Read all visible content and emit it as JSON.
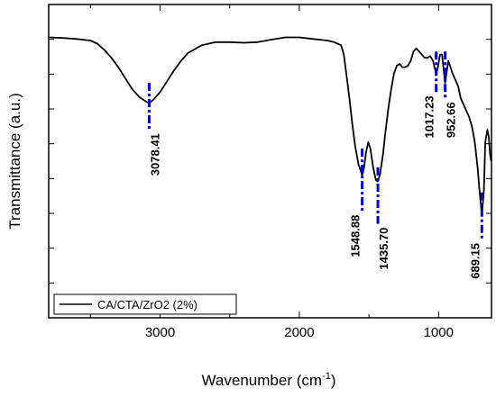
{
  "chart_data": {
    "type": "line",
    "xlabel": "Wavenumber (cm",
    "xlabel_sup": "-1",
    "xlabel_close": ")",
    "ylabel": "Transmittance (a.u.)",
    "xlim": [
      3800,
      620
    ],
    "ylim": [
      0,
      100
    ],
    "x_reversed": true,
    "x_ticks": [
      3000,
      2000,
      1000
    ],
    "y_ticks_labeled": false,
    "legend": {
      "position": "bottom-left",
      "entries": [
        "CA/CTA/ZrO2 (2%)"
      ]
    },
    "colors": {
      "series": "#000000",
      "markers": "#0000cc",
      "axis": "#000000"
    },
    "series": [
      {
        "name": "CA/CTA/ZrO2 (2%)",
        "x": [
          3800,
          3700,
          3600,
          3500,
          3450,
          3400,
          3350,
          3300,
          3250,
          3200,
          3150,
          3100,
          3078,
          3050,
          3000,
          2950,
          2900,
          2850,
          2800,
          2700,
          2600,
          2500,
          2400,
          2300,
          2200,
          2100,
          2000,
          1900,
          1800,
          1750,
          1700,
          1680,
          1660,
          1640,
          1620,
          1600,
          1575,
          1560,
          1549,
          1535,
          1520,
          1505,
          1490,
          1470,
          1450,
          1436,
          1420,
          1400,
          1380,
          1360,
          1340,
          1320,
          1300,
          1280,
          1260,
          1240,
          1220,
          1200,
          1180,
          1160,
          1140,
          1120,
          1100,
          1080,
          1060,
          1040,
          1030,
          1017,
          1005,
          990,
          975,
          963,
          953,
          943,
          930,
          915,
          900,
          880,
          860,
          840,
          820,
          800,
          780,
          760,
          740,
          720,
          705,
          689,
          675,
          665,
          650,
          640,
          630,
          622
        ],
        "y": [
          89.5,
          89.3,
          89,
          88.5,
          87.5,
          85.5,
          83,
          80,
          76.5,
          73,
          70.5,
          69,
          68.5,
          69.5,
          72,
          75.5,
          79,
          82,
          84.5,
          87,
          88,
          88,
          87.8,
          88,
          88.8,
          89.5,
          89.5,
          89,
          88.5,
          88,
          87,
          84,
          77,
          70,
          62,
          55,
          49,
          47,
          45.5,
          48,
          53,
          56,
          54,
          48,
          44,
          43.5,
          46,
          52,
          60,
          67,
          73,
          78,
          80.5,
          81,
          80,
          80,
          80.5,
          82,
          85,
          86,
          85,
          84,
          83,
          83,
          83.5,
          82,
          80,
          78,
          80,
          84,
          84,
          79,
          75,
          78,
          82,
          80,
          78,
          76,
          74,
          70,
          68,
          66,
          64,
          61,
          56,
          48,
          40,
          33,
          40,
          56,
          60,
          58,
          52,
          50
        ]
      }
    ],
    "annotations": [
      {
        "x": 3078.41,
        "label": "3078.41",
        "y_top": 75,
        "y_bot": 60,
        "label_side": "below"
      },
      {
        "x": 1548.88,
        "label": "1548.88",
        "y_top": 54,
        "y_bot": 34,
        "label_side": "below-left"
      },
      {
        "x": 1435.7,
        "label": "1435.70",
        "y_top": 48,
        "y_bot": 30,
        "label_side": "below"
      },
      {
        "x": 1017.23,
        "label": "1017.23",
        "y_top": 85,
        "y_bot": 72,
        "label_side": "below-left"
      },
      {
        "x": 952.66,
        "label": "952.66",
        "y_top": 85,
        "y_bot": 70,
        "label_side": "below"
      },
      {
        "x": 689.15,
        "label": "689.15",
        "y_top": 40,
        "y_bot": 25,
        "label_side": "below-left"
      }
    ]
  }
}
